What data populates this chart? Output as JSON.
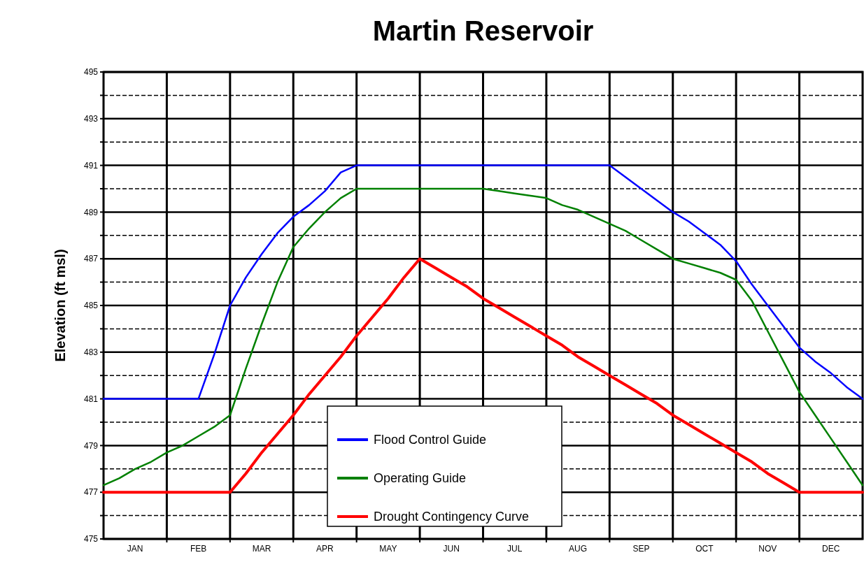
{
  "chart_data": {
    "type": "line",
    "title": "Martin Reservoir",
    "ylabel": "Elevation (ft msl)",
    "categories": [
      null,
      null,
      "JAN",
      null,
      null,
      null,
      "FEB",
      null,
      null,
      null,
      "MAR",
      null,
      null,
      null,
      "APR",
      null,
      null,
      null,
      "MAY",
      null,
      null,
      null,
      "JUN",
      null,
      null,
      null,
      "JUL",
      null,
      null,
      null,
      "AUG",
      null,
      null,
      null,
      "SEP",
      null,
      null,
      null,
      "OCT",
      null,
      null,
      null,
      "NOV",
      null,
      null,
      null,
      "DEC",
      null,
      null
    ],
    "ylim": [
      475,
      495
    ],
    "yticks": [
      475,
      477,
      479,
      481,
      483,
      485,
      487,
      489,
      491,
      493,
      495,
      {
        "value": 476,
        "label": null
      },
      {
        "value": 478,
        "label": null
      },
      {
        "value": 480,
        "label": null
      },
      {
        "value": 482,
        "label": null
      },
      {
        "value": 484,
        "label": null
      },
      {
        "value": 486,
        "label": null
      },
      {
        "value": 488,
        "label": null
      },
      {
        "value": 490,
        "label": null
      },
      {
        "value": 492,
        "label": null
      },
      {
        "value": 494,
        "label": null
      }
    ],
    "grid": true,
    "legend": "bottom",
    "line_style": "solid",
    "marker": "none",
    "series": [
      {
        "name": "Flood Control Guide",
        "color": "#0000ff",
        "values": [
          481,
          481,
          481,
          481,
          481,
          481,
          481,
          482.9,
          485,
          486.2,
          487.2,
          488.1,
          488.8,
          489.3,
          489.9,
          490.7,
          491,
          491,
          491,
          491,
          491,
          491,
          491,
          491,
          491,
          491,
          491,
          491,
          491,
          491,
          491,
          491,
          491,
          490.5,
          490,
          489.5,
          489,
          488.6,
          488.1,
          487.6,
          486.9,
          485.9,
          485,
          484.1,
          483.2,
          482.6,
          482.1,
          481.5,
          481
        ]
      },
      {
        "name": "Operating Guide",
        "color": "#008000",
        "values": [
          477.3,
          477.6,
          478,
          478.3,
          478.7,
          479,
          479.4,
          479.8,
          480.3,
          482.3,
          484.2,
          486,
          487.5,
          488.3,
          489,
          489.6,
          490,
          490,
          490,
          490,
          490,
          490,
          490,
          490,
          490,
          489.9,
          489.8,
          489.7,
          489.6,
          489.3,
          489.1,
          488.8,
          488.5,
          488.2,
          487.8,
          487.4,
          487,
          486.8,
          486.6,
          486.4,
          486.1,
          485.2,
          483.9,
          482.6,
          481.3,
          480.3,
          479.3,
          478.3,
          477.3
        ]
      },
      {
        "name": "Drought Contingency Curve",
        "color": "#ff0000",
        "values": [
          477,
          477,
          477,
          477,
          477,
          477,
          477,
          477,
          477,
          477.8,
          478.7,
          479.5,
          480.3,
          481.2,
          482,
          482.8,
          483.7,
          484.5,
          485.3,
          486.2,
          487,
          486.6,
          486.2,
          485.8,
          485.3,
          484.9,
          484.5,
          484.1,
          483.7,
          483.3,
          482.8,
          482.4,
          482,
          481.6,
          481.2,
          480.8,
          480.3,
          479.9,
          479.5,
          479.1,
          478.7,
          478.3,
          477.8,
          477.4,
          477,
          477,
          477,
          477,
          477
        ]
      }
    ]
  }
}
